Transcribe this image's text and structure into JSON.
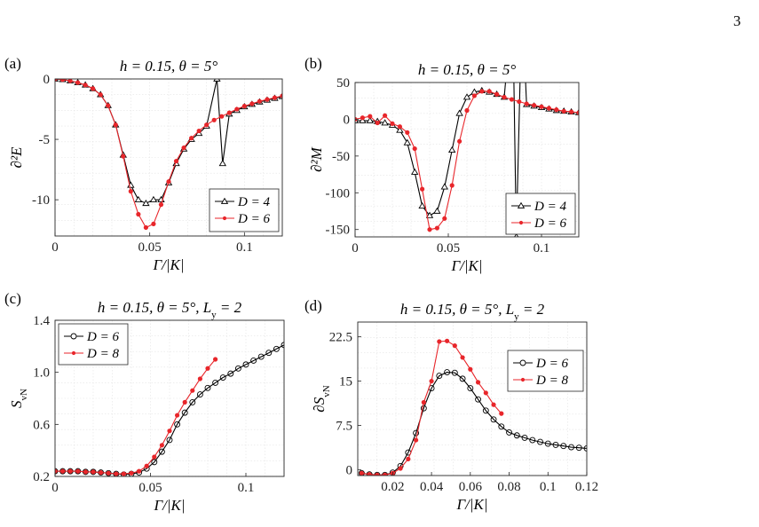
{
  "page_number": "3",
  "colors": {
    "D4": "#000000",
    "D6_red": "#e8262b",
    "D6_black": "#000000",
    "D8": "#e8262b",
    "grid": "#e3e3e3"
  },
  "chart_data": [
    {
      "panel": "(a)",
      "type": "line",
      "title": "h = 0.15, θ = 5°",
      "xlabel": "Γ/|K|",
      "ylabel": "∂²E",
      "xlim": [
        0,
        0.12
      ],
      "ylim": [
        -13,
        0
      ],
      "xticks": [
        0,
        0.05,
        0.1
      ],
      "xtick_labels": [
        "0",
        "0.05",
        "0.1"
      ],
      "yticks": [
        0,
        -5,
        -10
      ],
      "ytick_labels": [
        "0",
        "-5",
        "-10"
      ],
      "grid": true,
      "legend_position": "bottom-right",
      "series": [
        {
          "name": "D = 4",
          "color": "#000000",
          "marker": "triangle",
          "x": [
            0.0,
            0.004,
            0.008,
            0.012,
            0.016,
            0.02,
            0.024,
            0.028,
            0.032,
            0.036,
            0.04,
            0.044,
            0.048,
            0.052,
            0.056,
            0.06,
            0.064,
            0.068,
            0.072,
            0.076,
            0.08,
            0.0855,
            0.0885,
            0.092,
            0.096,
            0.1,
            0.104,
            0.108,
            0.112,
            0.116,
            0.12
          ],
          "y": [
            0.0,
            -0.05,
            -0.15,
            -0.3,
            -0.5,
            -0.8,
            -1.3,
            -2.2,
            -3.8,
            -6.3,
            -8.8,
            -10.0,
            -10.3,
            -10.0,
            -10.0,
            -8.6,
            -7.0,
            -5.8,
            -5.0,
            -4.5,
            -3.9,
            0.0,
            -7.0,
            -2.9,
            -2.6,
            -2.3,
            -2.1,
            -1.9,
            -1.75,
            -1.6,
            -1.45
          ]
        },
        {
          "name": "D = 6",
          "color": "#e8262b",
          "marker": "dot",
          "x": [
            0.0,
            0.004,
            0.008,
            0.012,
            0.016,
            0.02,
            0.024,
            0.028,
            0.032,
            0.036,
            0.04,
            0.044,
            0.048,
            0.052,
            0.056,
            0.06,
            0.064,
            0.068,
            0.072,
            0.076,
            0.08,
            0.084,
            0.088,
            0.092,
            0.096,
            0.1,
            0.104,
            0.108,
            0.112,
            0.116,
            0.12
          ],
          "y": [
            0.0,
            -0.05,
            -0.15,
            -0.3,
            -0.5,
            -0.8,
            -1.3,
            -2.2,
            -3.8,
            -6.4,
            -9.3,
            -11.2,
            -12.3,
            -12.0,
            -10.4,
            -8.5,
            -6.8,
            -5.7,
            -4.9,
            -4.3,
            -3.8,
            -3.4,
            -3.1,
            -2.8,
            -2.5,
            -2.25,
            -2.05,
            -1.85,
            -1.7,
            -1.55,
            -1.4
          ]
        }
      ]
    },
    {
      "panel": "(b)",
      "type": "line",
      "title": "h = 0.15, θ = 5°",
      "xlabel": "Γ/|K|",
      "ylabel": "∂²M",
      "xlim": [
        0,
        0.12
      ],
      "ylim": [
        -160,
        50
      ],
      "xticks": [
        0,
        0.05,
        0.1
      ],
      "xtick_labels": [
        "0",
        "0.05",
        "0.1"
      ],
      "yticks": [
        50,
        0,
        -50,
        -100,
        -150
      ],
      "ytick_labels": [
        "50",
        "0",
        "-50",
        "-100",
        "-150"
      ],
      "grid": true,
      "legend_position": "bottom-right",
      "series": [
        {
          "name": "D = 4",
          "color": "#000000",
          "marker": "triangle",
          "x": [
            0.0,
            0.004,
            0.008,
            0.012,
            0.016,
            0.02,
            0.024,
            0.028,
            0.032,
            0.036,
            0.04,
            0.044,
            0.048,
            0.052,
            0.056,
            0.06,
            0.064,
            0.068,
            0.072,
            0.076,
            0.08,
            0.0845,
            0.0865,
            0.0895,
            0.092,
            0.096,
            0.1,
            0.104,
            0.108,
            0.112,
            0.116,
            0.12
          ],
          "y": [
            -2,
            -2,
            -2,
            -3,
            -5,
            -8,
            -15,
            -32,
            -72,
            -118,
            -131,
            -125,
            -92,
            -42,
            8,
            30,
            37,
            39,
            37,
            34,
            30,
            160,
            -160,
            160,
            20,
            18,
            16,
            14,
            12,
            11,
            10,
            9
          ]
        },
        {
          "name": "D = 6",
          "color": "#e8262b",
          "marker": "dot",
          "x": [
            0.0,
            0.004,
            0.008,
            0.012,
            0.016,
            0.02,
            0.024,
            0.028,
            0.032,
            0.036,
            0.04,
            0.044,
            0.048,
            0.052,
            0.056,
            0.06,
            0.064,
            0.068,
            0.072,
            0.076,
            0.08,
            0.084,
            0.088,
            0.092,
            0.096,
            0.1,
            0.104,
            0.108,
            0.112,
            0.116,
            0.12
          ],
          "y": [
            0,
            2,
            4,
            -5,
            5,
            -6,
            -10,
            -18,
            -40,
            -95,
            -150,
            -148,
            -135,
            -90,
            -30,
            12,
            32,
            38,
            38,
            34,
            30,
            27,
            24,
            21,
            19,
            17,
            15,
            13,
            11,
            10,
            9
          ]
        }
      ]
    },
    {
      "panel": "(c)",
      "type": "line",
      "title": "h = 0.15, θ = 5°, L_y = 2",
      "xlabel": "Γ/|K|",
      "ylabel": "S_vN",
      "xlim": [
        0,
        0.12
      ],
      "ylim": [
        0.2,
        1.4
      ],
      "xticks": [
        0,
        0.05,
        0.1
      ],
      "xtick_labels": [
        "0",
        "0.05",
        "0.1"
      ],
      "yticks": [
        0.2,
        0.6,
        1.0,
        1.4
      ],
      "ytick_labels": [
        "0.2",
        "0.6",
        "1.0",
        "1.4"
      ],
      "grid": true,
      "legend_position": "top-left",
      "series": [
        {
          "name": "D = 6",
          "color": "#000000",
          "marker": "circle",
          "x": [
            0.0,
            0.004,
            0.008,
            0.012,
            0.016,
            0.02,
            0.024,
            0.028,
            0.032,
            0.036,
            0.04,
            0.044,
            0.048,
            0.052,
            0.056,
            0.06,
            0.064,
            0.068,
            0.072,
            0.076,
            0.08,
            0.084,
            0.088,
            0.092,
            0.096,
            0.1,
            0.104,
            0.108,
            0.112,
            0.116,
            0.12
          ],
          "y": [
            0.24,
            0.24,
            0.24,
            0.24,
            0.235,
            0.235,
            0.23,
            0.225,
            0.22,
            0.215,
            0.22,
            0.23,
            0.26,
            0.31,
            0.39,
            0.48,
            0.6,
            0.69,
            0.77,
            0.83,
            0.88,
            0.92,
            0.96,
            0.99,
            1.03,
            1.06,
            1.09,
            1.12,
            1.15,
            1.18,
            1.21
          ]
        },
        {
          "name": "D = 8",
          "color": "#e8262b",
          "marker": "dot",
          "x": [
            0.0,
            0.004,
            0.008,
            0.012,
            0.016,
            0.02,
            0.024,
            0.028,
            0.032,
            0.036,
            0.04,
            0.044,
            0.048,
            0.052,
            0.056,
            0.06,
            0.064,
            0.068,
            0.072,
            0.076,
            0.08,
            0.084
          ],
          "y": [
            0.24,
            0.24,
            0.24,
            0.24,
            0.235,
            0.235,
            0.23,
            0.225,
            0.22,
            0.22,
            0.225,
            0.24,
            0.28,
            0.35,
            0.44,
            0.55,
            0.67,
            0.77,
            0.86,
            0.95,
            1.03,
            1.1
          ]
        }
      ]
    },
    {
      "panel": "(d)",
      "type": "line",
      "title": "h = 0.15, θ = 5°, L_y = 2",
      "xlabel": "Γ/|K|",
      "ylabel": "∂S_vN",
      "xlim": [
        0.002,
        0.12
      ],
      "ylim": [
        -1,
        25
      ],
      "xticks": [
        0.02,
        0.04,
        0.06,
        0.08,
        0.1,
        0.12
      ],
      "xtick_labels": [
        "0.02",
        "0.04",
        "0.06",
        "0.08",
        "0.1",
        "0.12"
      ],
      "yticks": [
        0,
        7.5,
        15,
        22.5
      ],
      "ytick_labels": [
        "0",
        "7.5",
        "15",
        "22.5"
      ],
      "grid": true,
      "legend_position": "top-right",
      "series": [
        {
          "name": "D = 6",
          "color": "#000000",
          "marker": "circle",
          "x": [
            0.004,
            0.008,
            0.012,
            0.016,
            0.02,
            0.024,
            0.028,
            0.032,
            0.036,
            0.04,
            0.044,
            0.048,
            0.052,
            0.056,
            0.06,
            0.064,
            0.068,
            0.072,
            0.076,
            0.08,
            0.084,
            0.088,
            0.092,
            0.096,
            0.1,
            0.104,
            0.108,
            0.112,
            0.116,
            0.12
          ],
          "y": [
            -0.6,
            -0.8,
            -0.9,
            -0.9,
            -0.5,
            0.6,
            2.9,
            6.2,
            10.4,
            13.8,
            15.9,
            16.5,
            16.4,
            15.4,
            13.8,
            11.9,
            10.0,
            8.5,
            7.3,
            6.3,
            5.8,
            5.4,
            5.0,
            4.7,
            4.4,
            4.2,
            4.0,
            3.8,
            3.7,
            3.6
          ]
        },
        {
          "name": "D = 8",
          "color": "#e8262b",
          "marker": "dot",
          "x": [
            0.004,
            0.008,
            0.012,
            0.016,
            0.02,
            0.024,
            0.028,
            0.032,
            0.036,
            0.04,
            0.044,
            0.048,
            0.052,
            0.056,
            0.06,
            0.064,
            0.068,
            0.072,
            0.076
          ],
          "y": [
            -0.6,
            -0.8,
            -0.9,
            -0.9,
            -0.6,
            0.2,
            1.8,
            5.0,
            11.4,
            15.0,
            21.7,
            21.8,
            21.0,
            19.0,
            17.0,
            14.8,
            13.0,
            11.0,
            9.5
          ]
        }
      ]
    }
  ]
}
